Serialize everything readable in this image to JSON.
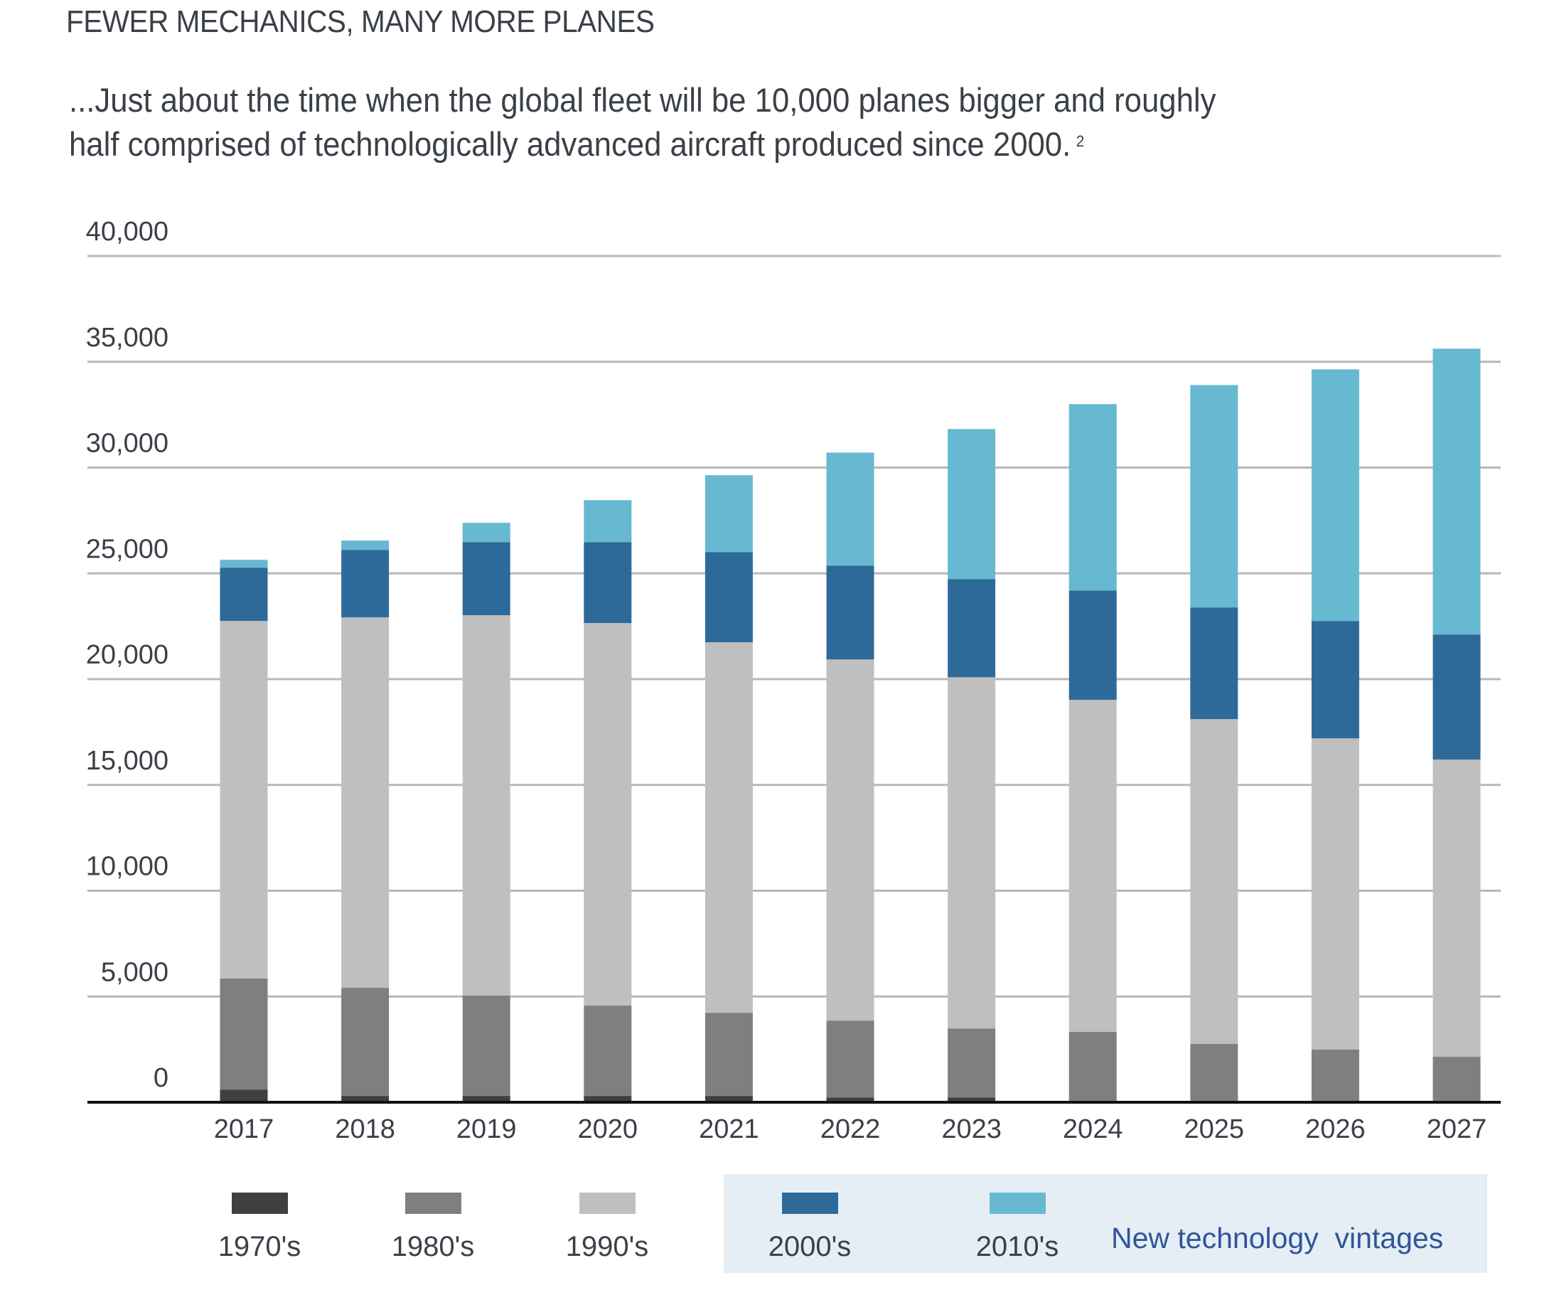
{
  "header": {
    "kicker": "FEWER MECHANICS, MANY MORE PLANES",
    "subtitle_line1": "...Just about the time when the global fleet will be 10,000 planes bigger and roughly",
    "subtitle_line2": "half comprised of technologically advanced aircraft produced since 2000.",
    "footnote_marker": "2"
  },
  "legend": {
    "highlight_note": "New technology  vintages"
  },
  "chart_data": {
    "type": "bar",
    "stacked": true,
    "title": "",
    "xlabel": "",
    "ylabel": "",
    "ylim": [
      0,
      40000
    ],
    "yticks": [
      0,
      5000,
      10000,
      15000,
      20000,
      25000,
      30000,
      35000,
      40000
    ],
    "ytick_labels": [
      "0",
      "5,000",
      "10,000",
      "15,000",
      "20,000",
      "25,000",
      "30,000",
      "35,000",
      "40,000"
    ],
    "grid": true,
    "legend_position": "bottom",
    "categories": [
      "2017",
      "2018",
      "2019",
      "2020",
      "2021",
      "2022",
      "2023",
      "2024",
      "2025",
      "2026",
      "2027"
    ],
    "series": [
      {
        "name": "1970's",
        "color": "#404040",
        "values": [
          600,
          300,
          300,
          300,
          300,
          230,
          230,
          0,
          0,
          0,
          0
        ]
      },
      {
        "name": "1980's",
        "color": "#7f7f7f",
        "values": [
          5250,
          5110,
          4740,
          4270,
          3930,
          3630,
          3260,
          3330,
          2760,
          2490,
          2150
        ]
      },
      {
        "name": "1990's",
        "color": "#bfbfbf",
        "values": [
          16900,
          17510,
          17980,
          18080,
          17510,
          17070,
          16600,
          15690,
          15350,
          14710,
          14050
        ]
      },
      {
        "name": "2000's",
        "color": "#2e6a99",
        "values": [
          2520,
          3190,
          3460,
          3830,
          4270,
          4440,
          4640,
          5170,
          5280,
          5550,
          5910
        ]
      },
      {
        "name": "2010's",
        "color": "#67b8d1",
        "values": [
          370,
          440,
          910,
          1980,
          3630,
          5340,
          7090,
          8810,
          10510,
          11890,
          13510
        ]
      }
    ],
    "annotations": [
      "New technology  vintages (2000's and 2010's)"
    ]
  }
}
